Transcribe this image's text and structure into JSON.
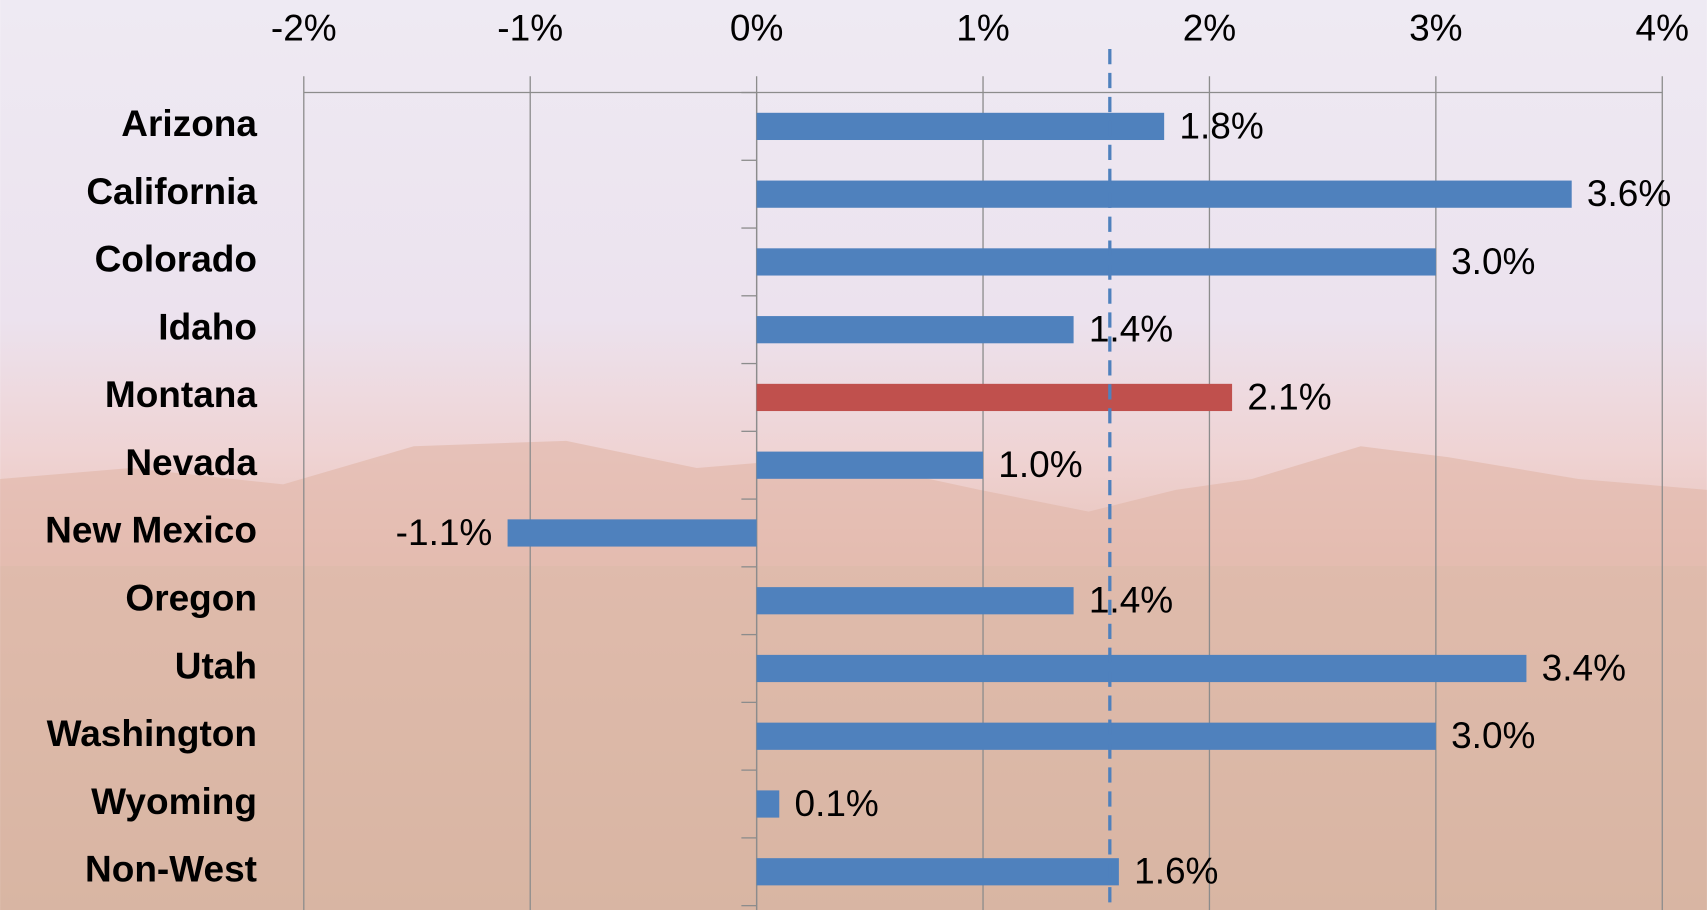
{
  "chart_data": {
    "type": "bar",
    "orientation": "horizontal",
    "categories": [
      "Arizona",
      "California",
      "Colorado",
      "Idaho",
      "Montana",
      "Nevada",
      "New Mexico",
      "Oregon",
      "Utah",
      "Washington",
      "Wyoming",
      "Non-West"
    ],
    "values": [
      1.8,
      3.6,
      3.0,
      1.4,
      2.1,
      1.0,
      -1.1,
      1.4,
      3.4,
      3.0,
      0.1,
      1.6
    ],
    "value_labels": [
      "1.8%",
      "3.6%",
      "3.0%",
      "1.4%",
      "2.1%",
      "1.0%",
      "-1.1%",
      "1.4%",
      "3.4%",
      "3.0%",
      "0.1%",
      "1.6%"
    ],
    "colors": [
      "#4f81bd",
      "#4f81bd",
      "#4f81bd",
      "#4f81bd",
      "#c0504d",
      "#4f81bd",
      "#4f81bd",
      "#4f81bd",
      "#4f81bd",
      "#4f81bd",
      "#4f81bd",
      "#4f81bd"
    ],
    "xlim": [
      -2,
      4
    ],
    "xticks": [
      {
        "value": -2,
        "label": "-2%"
      },
      {
        "value": -1,
        "label": "-1%"
      },
      {
        "value": 0,
        "label": "0%"
      },
      {
        "value": 1,
        "label": "1%"
      },
      {
        "value": 2,
        "label": "2%"
      },
      {
        "value": 3,
        "label": "3%"
      },
      {
        "value": 4,
        "label": "4%"
      }
    ],
    "reference_line": 1.56,
    "reference_color": "#4f81bd",
    "grid": true
  }
}
